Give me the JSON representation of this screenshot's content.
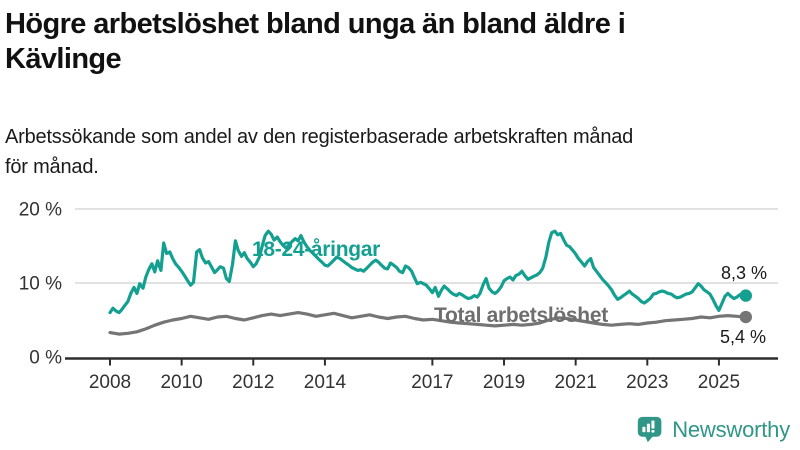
{
  "header": {
    "title_line1": "Högre arbetslöshet bland unga än bland äldre i",
    "title_line2": "Kävlinge",
    "subtitle_line1": "Arbetssökande som andel av den registerbaserade arbetskraften månad",
    "subtitle_line2": "för månad."
  },
  "colors": {
    "young_series": "#14a091",
    "total_series": "#757575",
    "total_label": "#6e6e6e",
    "gridline": "#d9d9d9",
    "axis_line": "#2e2e2e",
    "axis_text": "#333333",
    "end_label_text": "#1a1a1a",
    "brand_teal": "#2f9688"
  },
  "footer": {
    "brand": "Newsworthy"
  },
  "chart_data": {
    "type": "line",
    "title": "Högre arbetslöshet bland unga än bland äldre i Kävlinge",
    "subtitle": "Arbetssökande som andel av den registerbaserade arbetskraften månad för månad.",
    "xlabel": "",
    "ylabel": "",
    "grid": "horizontal-only",
    "legend_position": "inline-labels",
    "x_axis": {
      "ticks": [
        2008,
        2010,
        2012,
        2014,
        2017,
        2019,
        2021,
        2023,
        2025
      ],
      "range": [
        2007.9,
        2025.9
      ]
    },
    "y_axis": {
      "ticks": [
        0,
        10,
        20
      ],
      "tick_suffix": " %",
      "gridlines": [
        10,
        20
      ],
      "range": [
        0,
        21
      ]
    },
    "series": [
      {
        "name": "18-24-åringar",
        "color": "#14a091",
        "end_label": "8,3 %",
        "end_value": 8.3,
        "points": [
          [
            2008.0,
            6.0
          ],
          [
            2008.08,
            6.6
          ],
          [
            2008.17,
            6.2
          ],
          [
            2008.25,
            6.0
          ],
          [
            2008.33,
            6.4
          ],
          [
            2008.42,
            7.0
          ],
          [
            2008.5,
            7.5
          ],
          [
            2008.58,
            8.6
          ],
          [
            2008.67,
            9.4
          ],
          [
            2008.75,
            8.6
          ],
          [
            2008.83,
            9.9
          ],
          [
            2008.92,
            9.3
          ],
          [
            2009.0,
            10.8
          ],
          [
            2009.08,
            11.8
          ],
          [
            2009.17,
            12.6
          ],
          [
            2009.25,
            11.5
          ],
          [
            2009.33,
            13.0
          ],
          [
            2009.42,
            11.7
          ],
          [
            2009.5,
            15.4
          ],
          [
            2009.58,
            14.0
          ],
          [
            2009.67,
            14.2
          ],
          [
            2009.75,
            13.3
          ],
          [
            2009.83,
            12.6
          ],
          [
            2009.92,
            12.1
          ],
          [
            2010.0,
            11.6
          ],
          [
            2010.08,
            11.0
          ],
          [
            2010.17,
            10.3
          ],
          [
            2010.25,
            9.7
          ],
          [
            2010.33,
            10.1
          ],
          [
            2010.42,
            14.2
          ],
          [
            2010.5,
            14.5
          ],
          [
            2010.58,
            13.4
          ],
          [
            2010.67,
            12.7
          ],
          [
            2010.75,
            12.9
          ],
          [
            2010.83,
            12.2
          ],
          [
            2010.92,
            11.4
          ],
          [
            2011.0,
            11.8
          ],
          [
            2011.08,
            12.2
          ],
          [
            2011.17,
            12.0
          ],
          [
            2011.25,
            10.6
          ],
          [
            2011.33,
            10.2
          ],
          [
            2011.42,
            12.5
          ],
          [
            2011.5,
            15.7
          ],
          [
            2011.58,
            14.4
          ],
          [
            2011.67,
            13.6
          ],
          [
            2011.75,
            14.1
          ],
          [
            2011.83,
            13.3
          ],
          [
            2011.92,
            12.8
          ],
          [
            2012.0,
            12.2
          ],
          [
            2012.08,
            12.6
          ],
          [
            2012.17,
            13.5
          ],
          [
            2012.25,
            15.0
          ],
          [
            2012.33,
            16.4
          ],
          [
            2012.42,
            17.0
          ],
          [
            2012.5,
            16.6
          ],
          [
            2012.58,
            15.8
          ],
          [
            2012.67,
            16.2
          ],
          [
            2012.75,
            15.6
          ],
          [
            2012.83,
            15.1
          ],
          [
            2012.92,
            14.7
          ],
          [
            2013.0,
            15.2
          ],
          [
            2013.08,
            15.6
          ],
          [
            2013.17,
            16.0
          ],
          [
            2013.25,
            15.7
          ],
          [
            2013.33,
            16.4
          ],
          [
            2013.42,
            15.5
          ],
          [
            2013.5,
            14.9
          ],
          [
            2013.58,
            14.4
          ],
          [
            2013.67,
            14.0
          ],
          [
            2013.75,
            13.6
          ],
          [
            2013.83,
            13.2
          ],
          [
            2013.92,
            12.8
          ],
          [
            2014.0,
            12.4
          ],
          [
            2014.08,
            12.3
          ],
          [
            2014.17,
            12.7
          ],
          [
            2014.25,
            13.1
          ],
          [
            2014.33,
            13.5
          ],
          [
            2014.42,
            13.3
          ],
          [
            2014.5,
            13.0
          ],
          [
            2014.58,
            12.7
          ],
          [
            2014.67,
            12.4
          ],
          [
            2014.75,
            12.1
          ],
          [
            2014.83,
            11.9
          ],
          [
            2014.92,
            11.7
          ],
          [
            2015.0,
            11.8
          ],
          [
            2015.08,
            11.6
          ],
          [
            2015.17,
            12.0
          ],
          [
            2015.25,
            12.4
          ],
          [
            2015.33,
            12.8
          ],
          [
            2015.42,
            13.1
          ],
          [
            2015.5,
            12.8
          ],
          [
            2015.58,
            12.4
          ],
          [
            2015.67,
            12.0
          ],
          [
            2015.75,
            11.9
          ],
          [
            2015.83,
            12.7
          ],
          [
            2015.92,
            12.4
          ],
          [
            2016.0,
            12.1
          ],
          [
            2016.08,
            11.6
          ],
          [
            2016.17,
            11.4
          ],
          [
            2016.25,
            12.3
          ],
          [
            2016.33,
            12.1
          ],
          [
            2016.42,
            11.6
          ],
          [
            2016.5,
            10.7
          ],
          [
            2016.58,
            9.9
          ],
          [
            2016.67,
            10.1
          ],
          [
            2016.75,
            9.9
          ],
          [
            2016.83,
            9.7
          ],
          [
            2016.92,
            9.2
          ],
          [
            2017.0,
            8.7
          ],
          [
            2017.08,
            9.4
          ],
          [
            2017.17,
            8.2
          ],
          [
            2017.25,
            9.0
          ],
          [
            2017.33,
            9.6
          ],
          [
            2017.42,
            9.2
          ],
          [
            2017.5,
            8.8
          ],
          [
            2017.58,
            8.5
          ],
          [
            2017.67,
            8.3
          ],
          [
            2017.75,
            8.6
          ],
          [
            2017.83,
            8.4
          ],
          [
            2017.92,
            8.1
          ],
          [
            2018.0,
            7.9
          ],
          [
            2018.08,
            8.0
          ],
          [
            2018.17,
            8.3
          ],
          [
            2018.25,
            8.1
          ],
          [
            2018.33,
            8.6
          ],
          [
            2018.42,
            9.8
          ],
          [
            2018.5,
            10.6
          ],
          [
            2018.58,
            9.3
          ],
          [
            2018.67,
            8.8
          ],
          [
            2018.75,
            8.6
          ],
          [
            2018.83,
            8.9
          ],
          [
            2018.92,
            9.5
          ],
          [
            2019.0,
            10.3
          ],
          [
            2019.08,
            10.6
          ],
          [
            2019.17,
            10.8
          ],
          [
            2019.25,
            10.4
          ],
          [
            2019.33,
            11.0
          ],
          [
            2019.42,
            11.2
          ],
          [
            2019.5,
            11.6
          ],
          [
            2019.58,
            11.0
          ],
          [
            2019.67,
            10.5
          ],
          [
            2019.75,
            10.7
          ],
          [
            2019.83,
            10.9
          ],
          [
            2019.92,
            11.1
          ],
          [
            2020.0,
            11.4
          ],
          [
            2020.08,
            12.0
          ],
          [
            2020.17,
            13.5
          ],
          [
            2020.25,
            15.5
          ],
          [
            2020.33,
            16.8
          ],
          [
            2020.42,
            17.0
          ],
          [
            2020.5,
            16.5
          ],
          [
            2020.58,
            16.7
          ],
          [
            2020.67,
            15.8
          ],
          [
            2020.75,
            15.1
          ],
          [
            2020.83,
            14.9
          ],
          [
            2020.92,
            14.4
          ],
          [
            2021.0,
            13.9
          ],
          [
            2021.08,
            13.3
          ],
          [
            2021.17,
            12.8
          ],
          [
            2021.25,
            12.3
          ],
          [
            2021.33,
            12.9
          ],
          [
            2021.42,
            13.3
          ],
          [
            2021.5,
            12.1
          ],
          [
            2021.58,
            11.6
          ],
          [
            2021.67,
            11.0
          ],
          [
            2021.75,
            10.5
          ],
          [
            2021.83,
            10.1
          ],
          [
            2021.92,
            9.6
          ],
          [
            2022.0,
            9.1
          ],
          [
            2022.08,
            8.4
          ],
          [
            2022.17,
            7.8
          ],
          [
            2022.25,
            8.0
          ],
          [
            2022.33,
            8.3
          ],
          [
            2022.42,
            8.6
          ],
          [
            2022.5,
            8.9
          ],
          [
            2022.58,
            8.5
          ],
          [
            2022.67,
            8.2
          ],
          [
            2022.75,
            7.9
          ],
          [
            2022.83,
            7.5
          ],
          [
            2022.92,
            7.3
          ],
          [
            2023.0,
            7.6
          ],
          [
            2023.08,
            7.9
          ],
          [
            2023.17,
            8.5
          ],
          [
            2023.25,
            8.6
          ],
          [
            2023.33,
            8.8
          ],
          [
            2023.42,
            8.9
          ],
          [
            2023.5,
            8.8
          ],
          [
            2023.58,
            8.6
          ],
          [
            2023.67,
            8.5
          ],
          [
            2023.75,
            8.2
          ],
          [
            2023.83,
            8.0
          ],
          [
            2023.92,
            8.1
          ],
          [
            2024.0,
            8.3
          ],
          [
            2024.08,
            8.5
          ],
          [
            2024.17,
            8.6
          ],
          [
            2024.25,
            8.8
          ],
          [
            2024.33,
            9.3
          ],
          [
            2024.42,
            9.9
          ],
          [
            2024.5,
            9.6
          ],
          [
            2024.58,
            9.1
          ],
          [
            2024.67,
            8.8
          ],
          [
            2024.75,
            8.5
          ],
          [
            2024.83,
            7.8
          ],
          [
            2024.92,
            6.9
          ],
          [
            2025.0,
            6.3
          ],
          [
            2025.08,
            7.2
          ],
          [
            2025.17,
            8.2
          ],
          [
            2025.25,
            8.6
          ],
          [
            2025.33,
            8.2
          ],
          [
            2025.42,
            7.9
          ],
          [
            2025.5,
            8.1
          ],
          [
            2025.58,
            8.4
          ],
          [
            2025.67,
            8.2
          ],
          [
            2025.75,
            8.3
          ]
        ]
      },
      {
        "name": "Total arbetslöshet",
        "color": "#757575",
        "end_label": "5,4 %",
        "end_value": 5.4,
        "points": [
          [
            2008.0,
            3.3
          ],
          [
            2008.25,
            3.1
          ],
          [
            2008.5,
            3.2
          ],
          [
            2008.75,
            3.4
          ],
          [
            2009.0,
            3.8
          ],
          [
            2009.25,
            4.3
          ],
          [
            2009.5,
            4.7
          ],
          [
            2009.75,
            5.0
          ],
          [
            2010.0,
            5.2
          ],
          [
            2010.25,
            5.5
          ],
          [
            2010.5,
            5.3
          ],
          [
            2010.75,
            5.1
          ],
          [
            2011.0,
            5.4
          ],
          [
            2011.25,
            5.5
          ],
          [
            2011.5,
            5.2
          ],
          [
            2011.75,
            5.0
          ],
          [
            2012.0,
            5.3
          ],
          [
            2012.25,
            5.6
          ],
          [
            2012.5,
            5.8
          ],
          [
            2012.75,
            5.6
          ],
          [
            2013.0,
            5.8
          ],
          [
            2013.25,
            6.0
          ],
          [
            2013.5,
            5.8
          ],
          [
            2013.75,
            5.5
          ],
          [
            2014.0,
            5.7
          ],
          [
            2014.25,
            5.9
          ],
          [
            2014.5,
            5.6
          ],
          [
            2014.75,
            5.3
          ],
          [
            2015.0,
            5.5
          ],
          [
            2015.25,
            5.7
          ],
          [
            2015.5,
            5.4
          ],
          [
            2015.75,
            5.2
          ],
          [
            2016.0,
            5.4
          ],
          [
            2016.25,
            5.5
          ],
          [
            2016.5,
            5.2
          ],
          [
            2016.75,
            5.0
          ],
          [
            2017.0,
            5.1
          ],
          [
            2017.25,
            4.9
          ],
          [
            2017.5,
            4.7
          ],
          [
            2017.75,
            4.6
          ],
          [
            2018.0,
            4.5
          ],
          [
            2018.25,
            4.4
          ],
          [
            2018.5,
            4.3
          ],
          [
            2018.75,
            4.2
          ],
          [
            2019.0,
            4.3
          ],
          [
            2019.25,
            4.4
          ],
          [
            2019.5,
            4.3
          ],
          [
            2019.75,
            4.4
          ],
          [
            2020.0,
            4.6
          ],
          [
            2020.25,
            5.0
          ],
          [
            2020.5,
            5.3
          ],
          [
            2020.75,
            5.2
          ],
          [
            2021.0,
            5.0
          ],
          [
            2021.25,
            4.8
          ],
          [
            2021.5,
            4.6
          ],
          [
            2021.75,
            4.4
          ],
          [
            2022.0,
            4.3
          ],
          [
            2022.25,
            4.4
          ],
          [
            2022.5,
            4.5
          ],
          [
            2022.75,
            4.4
          ],
          [
            2023.0,
            4.6
          ],
          [
            2023.25,
            4.7
          ],
          [
            2023.5,
            4.9
          ],
          [
            2023.75,
            5.0
          ],
          [
            2024.0,
            5.1
          ],
          [
            2024.25,
            5.2
          ],
          [
            2024.5,
            5.4
          ],
          [
            2024.75,
            5.3
          ],
          [
            2025.0,
            5.5
          ],
          [
            2025.25,
            5.6
          ],
          [
            2025.5,
            5.5
          ],
          [
            2025.75,
            5.4
          ]
        ]
      }
    ]
  }
}
